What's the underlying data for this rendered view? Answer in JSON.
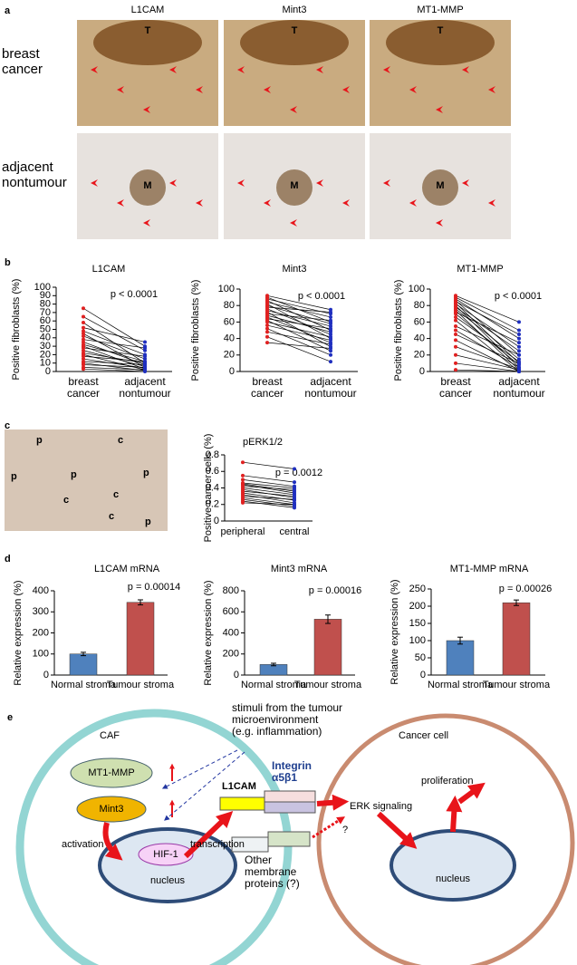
{
  "panel_labels": [
    "a",
    "b",
    "c",
    "d",
    "e"
  ],
  "panel_a": {
    "columns": [
      "L1CAM",
      "Mint3",
      "MT1-MMP"
    ],
    "rows": [
      "breast\ncancer",
      "adjacent\nnontumour"
    ],
    "markers": [
      [
        "T",
        "T",
        "T"
      ],
      [
        "M",
        "M",
        "M"
      ]
    ]
  },
  "panel_c_image": {
    "labels": [
      "p",
      "p",
      "p",
      "c",
      "c",
      "p",
      "c",
      "c",
      "p"
    ]
  },
  "chart_data": [
    {
      "type": "paired",
      "title": "L1CAM",
      "ylabel": "Positive fibroblasts (%)",
      "annotation": "p < 0.0001",
      "categories": [
        "breast\ncancer",
        "adjacent\nnontumour"
      ],
      "colors": [
        "#e02020",
        "#1f2fbf"
      ],
      "ylim": [
        0,
        100
      ],
      "yticks": [
        0,
        10,
        20,
        30,
        40,
        50,
        60,
        70,
        80,
        90,
        100
      ],
      "values": [
        [
          75,
          30
        ],
        [
          65,
          25
        ],
        [
          58,
          10
        ],
        [
          52,
          35
        ],
        [
          48,
          20
        ],
        [
          45,
          5
        ],
        [
          42,
          15
        ],
        [
          38,
          28
        ],
        [
          35,
          8
        ],
        [
          32,
          12
        ],
        [
          30,
          3
        ],
        [
          28,
          18
        ],
        [
          25,
          6
        ],
        [
          22,
          10
        ],
        [
          20,
          2
        ],
        [
          18,
          12
        ],
        [
          15,
          4
        ],
        [
          12,
          8
        ],
        [
          10,
          1
        ],
        [
          8,
          5
        ],
        [
          5,
          2
        ],
        [
          3,
          0
        ]
      ]
    },
    {
      "type": "paired",
      "title": "Mint3",
      "ylabel": "Positive fibroblasts (%)",
      "annotation": "p < 0.0001",
      "categories": [
        "breast\ncancer",
        "adjacent\nnontumour"
      ],
      "colors": [
        "#e02020",
        "#1f2fbf"
      ],
      "ylim": [
        0,
        100
      ],
      "yticks": [
        0,
        20,
        40,
        60,
        80,
        100
      ],
      "values": [
        [
          92,
          75
        ],
        [
          90,
          60
        ],
        [
          88,
          70
        ],
        [
          86,
          50
        ],
        [
          84,
          66
        ],
        [
          82,
          40
        ],
        [
          80,
          58
        ],
        [
          78,
          72
        ],
        [
          76,
          45
        ],
        [
          74,
          55
        ],
        [
          72,
          30
        ],
        [
          70,
          62
        ],
        [
          68,
          48
        ],
        [
          66,
          35
        ],
        [
          64,
          52
        ],
        [
          62,
          25
        ],
        [
          60,
          42
        ],
        [
          56,
          38
        ],
        [
          52,
          20
        ],
        [
          48,
          33
        ],
        [
          42,
          12
        ],
        [
          35,
          28
        ]
      ]
    },
    {
      "type": "paired",
      "title": "MT1-MMP",
      "ylabel": "Positive fibroblasts (%)",
      "annotation": "p < 0.0001",
      "categories": [
        "breast\ncancer",
        "adjacent\nnontumour"
      ],
      "colors": [
        "#e02020",
        "#1f2fbf"
      ],
      "ylim": [
        0,
        100
      ],
      "yticks": [
        0,
        20,
        40,
        60,
        80,
        100
      ],
      "values": [
        [
          92,
          60
        ],
        [
          90,
          50
        ],
        [
          88,
          40
        ],
        [
          86,
          20
        ],
        [
          85,
          45
        ],
        [
          83,
          10
        ],
        [
          82,
          30
        ],
        [
          80,
          5
        ],
        [
          78,
          25
        ],
        [
          76,
          15
        ],
        [
          74,
          2
        ],
        [
          72,
          35
        ],
        [
          70,
          8
        ],
        [
          66,
          12
        ],
        [
          62,
          0
        ],
        [
          55,
          20
        ],
        [
          50,
          5
        ],
        [
          45,
          10
        ],
        [
          38,
          0
        ],
        [
          30,
          3
        ],
        [
          20,
          2
        ],
        [
          10,
          0
        ],
        [
          2,
          0
        ]
      ]
    },
    {
      "type": "paired",
      "title": "pERK1/2",
      "ylabel": "Positive cancer cells (%)",
      "annotation": "p = 0.0012",
      "categories": [
        "peripheral",
        "central"
      ],
      "colors": [
        "#e02020",
        "#1f2fbf"
      ],
      "ylim": [
        0,
        0.8
      ],
      "yticks": [
        0,
        0.2,
        0.4,
        0.6,
        0.8
      ],
      "values": [
        [
          0.71,
          0.63
        ],
        [
          0.55,
          0.47
        ],
        [
          0.5,
          0.42
        ],
        [
          0.46,
          0.4
        ],
        [
          0.45,
          0.36
        ],
        [
          0.44,
          0.34
        ],
        [
          0.42,
          0.38
        ],
        [
          0.4,
          0.32
        ],
        [
          0.38,
          0.28
        ],
        [
          0.36,
          0.3
        ],
        [
          0.34,
          0.25
        ],
        [
          0.32,
          0.22
        ],
        [
          0.3,
          0.26
        ],
        [
          0.28,
          0.2
        ],
        [
          0.26,
          0.18
        ],
        [
          0.24,
          0.16
        ],
        [
          0.22,
          0.2
        ]
      ]
    },
    {
      "type": "bar",
      "title": "L1CAM mRNA",
      "ylabel": "Relative expression (%)",
      "annotation": "p = 0.00014",
      "categories": [
        "Normal stroma",
        "Tumour stroma"
      ],
      "colors": [
        "#4f81bd",
        "#c0504d"
      ],
      "ylim": [
        0,
        400
      ],
      "yticks": [
        0,
        100,
        200,
        300,
        400
      ],
      "values": [
        100,
        345
      ],
      "errors": [
        8,
        12
      ]
    },
    {
      "type": "bar",
      "title": "Mint3 mRNA",
      "ylabel": "Relative expression (%)",
      "annotation": "p = 0.00016",
      "categories": [
        "Normal stroma",
        "Tumour stroma"
      ],
      "colors": [
        "#4f81bd",
        "#c0504d"
      ],
      "ylim": [
        0,
        800
      ],
      "yticks": [
        0,
        200,
        400,
        600,
        800
      ],
      "values": [
        100,
        530
      ],
      "errors": [
        12,
        40
      ]
    },
    {
      "type": "bar",
      "title": "MT1-MMP mRNA",
      "ylabel": "Relative expression (%)",
      "annotation": "p = 0.00026",
      "categories": [
        "Normal stroma",
        "Tumour stroma"
      ],
      "colors": [
        "#4f81bd",
        "#c0504d"
      ],
      "ylim": [
        0,
        250
      ],
      "yticks": [
        0,
        50,
        100,
        150,
        200,
        250
      ],
      "values": [
        100,
        210
      ],
      "errors": [
        10,
        8
      ]
    }
  ],
  "diagram": {
    "caf": "CAF",
    "cancer_cell": "Cancer cell",
    "stimuli": "stimuli from the tumour\nmicroenvironment\n(e.g. inflammation)",
    "mt1mmp": "MT1-MMP",
    "mint3": "Mint3",
    "activation": "activation",
    "hif1": "HIF-1",
    "nucleus_caf": "nucleus",
    "transcription": "transcription",
    "l1cam": "L1CAM",
    "integrin": "Integrin\nα5β1",
    "erk": "ERK signaling",
    "question": "?",
    "other": "Other\nmembrane\nproteins (?)",
    "proliferation": "proliferation",
    "nucleus_cancer": "nucleus"
  }
}
